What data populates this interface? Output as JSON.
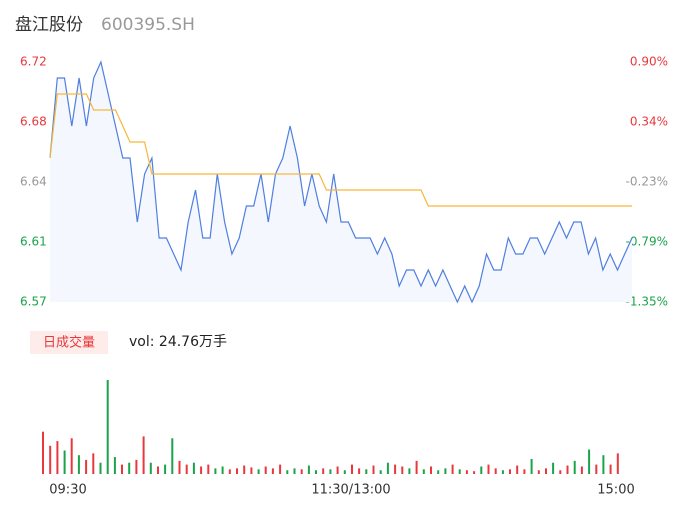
{
  "header": {
    "title": "盘江股份",
    "code": "600395.SH"
  },
  "chart_data": [
    {
      "type": "line",
      "series": [
        {
          "color": "#4f7fe0",
          "values": [
            6.66,
            6.71,
            6.71,
            6.68,
            6.71,
            6.68,
            6.71,
            6.72,
            6.7,
            6.68,
            6.66,
            6.66,
            6.62,
            6.65,
            6.66,
            6.61,
            6.61,
            6.6,
            6.59,
            6.62,
            6.64,
            6.61,
            6.61,
            6.65,
            6.62,
            6.6,
            6.61,
            6.63,
            6.63,
            6.65,
            6.62,
            6.65,
            6.66,
            6.68,
            6.66,
            6.63,
            6.65,
            6.63,
            6.62,
            6.65,
            6.62,
            6.62,
            6.61,
            6.61,
            6.61,
            6.6,
            6.61,
            6.6,
            6.58,
            6.59,
            6.59,
            6.58,
            6.59,
            6.58,
            6.59,
            6.58,
            6.57,
            6.58,
            6.57,
            6.58,
            6.6,
            6.59,
            6.59,
            6.61,
            6.6,
            6.6,
            6.61,
            6.61,
            6.6,
            6.61,
            6.62,
            6.61,
            6.62,
            6.62,
            6.6,
            6.61,
            6.59,
            6.6,
            6.59,
            6.6,
            6.61
          ]
        },
        {
          "color": "#f5b73b",
          "values": [
            6.66,
            6.7,
            6.7,
            6.7,
            6.7,
            6.7,
            6.69,
            6.69,
            6.69,
            6.69,
            6.68,
            6.67,
            6.67,
            6.67,
            6.65,
            6.65,
            6.65,
            6.65,
            6.65,
            6.65,
            6.65,
            6.65,
            6.65,
            6.65,
            6.65,
            6.65,
            6.65,
            6.65,
            6.65,
            6.65,
            6.65,
            6.65,
            6.65,
            6.65,
            6.65,
            6.65,
            6.65,
            6.65,
            6.64,
            6.64,
            6.64,
            6.64,
            6.64,
            6.64,
            6.64,
            6.64,
            6.64,
            6.64,
            6.64,
            6.64,
            6.64,
            6.64,
            6.63,
            6.63,
            6.63,
            6.63,
            6.63,
            6.63,
            6.63,
            6.63,
            6.63,
            6.63,
            6.63,
            6.63,
            6.63,
            6.63,
            6.63,
            6.63,
            6.63,
            6.63,
            6.63,
            6.63,
            6.63,
            6.63,
            6.63,
            6.63,
            6.63,
            6.63,
            6.63,
            6.63,
            6.63
          ]
        }
      ],
      "xlabels": [
        "09:30",
        "11:30/13:00",
        "15:00"
      ],
      "ylim": [
        6.57,
        6.72
      ],
      "yticks": [
        6.57,
        {
          "value": 6.6075,
          "label": "6.61"
        },
        {
          "value": 6.645,
          "label": "6.64"
        },
        {
          "value": 6.6825,
          "label": "6.68"
        },
        6.72
      ],
      "ytick_colors": [
        "#1aa34a",
        "#1aa34a",
        "#999999",
        "#e8383d",
        "#e8383d"
      ],
      "y2lim": [
        -1.35,
        0.9
      ],
      "y2ticks": [
        {
          "value": -1.35,
          "label": "-1.35%"
        },
        {
          "value": -0.7875,
          "label": "-0.79%"
        },
        {
          "value": -0.225,
          "label": "-0.23%"
        },
        {
          "value": 0.3375,
          "label": "0.34%"
        },
        {
          "value": 0.9,
          "label": "0.90%"
        }
      ],
      "grid": false
    },
    {
      "type": "bar",
      "title": "日成交量",
      "subtitle": "vol: 24.76万手",
      "values": [
        45,
        30,
        35,
        25,
        38,
        20,
        15,
        22,
        12,
        100,
        18,
        10,
        12,
        15,
        40,
        12,
        8,
        10,
        38,
        14,
        10,
        12,
        8,
        10,
        6,
        8,
        5,
        6,
        9,
        7,
        5,
        8,
        6,
        10,
        4,
        6,
        5,
        9,
        4,
        6,
        5,
        8,
        4,
        10,
        6,
        5,
        9,
        4,
        12,
        10,
        8,
        6,
        14,
        5,
        8,
        4,
        6,
        10,
        5,
        4,
        3,
        8,
        10,
        6,
        4,
        5,
        9,
        5,
        16,
        4,
        6,
        12,
        4,
        9,
        14,
        8,
        26,
        10,
        20,
        10,
        22
      ],
      "ylim": [
        0,
        100
      ],
      "colors": {
        "up": "#e8383d",
        "down": "#1aa34a"
      }
    }
  ]
}
